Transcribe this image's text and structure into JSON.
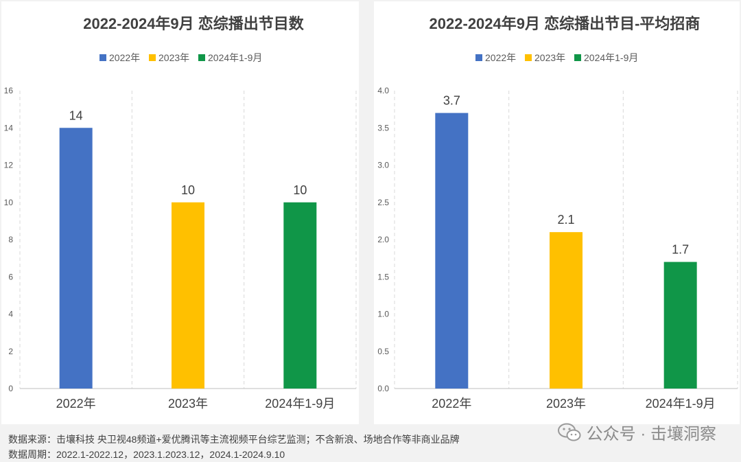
{
  "chart_data": [
    {
      "type": "bar",
      "title": "2022-2024年9月 恋综播出节目数",
      "categories": [
        "2022年",
        "2023年",
        "2024年1-9月"
      ],
      "series": [
        {
          "name": "节目数",
          "values": [
            14,
            10,
            10
          ]
        }
      ],
      "legend": [
        "2022年",
        "2023年",
        "2024年1-9月"
      ],
      "legend_position": "top",
      "colors": [
        "#4472c4",
        "#ffc000",
        "#109648"
      ],
      "ylim": [
        0,
        16
      ],
      "yticks": [
        "0",
        "2",
        "4",
        "6",
        "8",
        "10",
        "12",
        "14",
        "16"
      ],
      "data_labels": [
        "14",
        "10",
        "10"
      ]
    },
    {
      "type": "bar",
      "title": "2022-2024年9月 恋综播出节目-平均招商",
      "categories": [
        "2022年",
        "2023年",
        "2024年1-9月"
      ],
      "series": [
        {
          "name": "平均招商",
          "values": [
            3.7,
            2.1,
            1.7
          ]
        }
      ],
      "legend": [
        "2022年",
        "2023年",
        "2024年1-9月"
      ],
      "legend_position": "top",
      "colors": [
        "#4472c4",
        "#ffc000",
        "#109648"
      ],
      "ylim": [
        0,
        4.0
      ],
      "yticks": [
        "0.0",
        "0.5",
        "1.0",
        "1.5",
        "2.0",
        "2.5",
        "3.0",
        "3.5",
        "4.0"
      ],
      "data_labels": [
        "3.7",
        "2.1",
        "1.7"
      ]
    }
  ],
  "footer": {
    "source": "数据来源：击壤科技  央卫视48频道+爱优腾讯等主流视频平台综艺监测；不含新浪、场地合作等非商业品牌",
    "period": "数据周期：2022.1-2022.12，2023.1.2023.12，2024.1-2024.9.10"
  },
  "watermark": {
    "text": "公众号 · 击壤洞察",
    "icon": "wechat-icon"
  }
}
